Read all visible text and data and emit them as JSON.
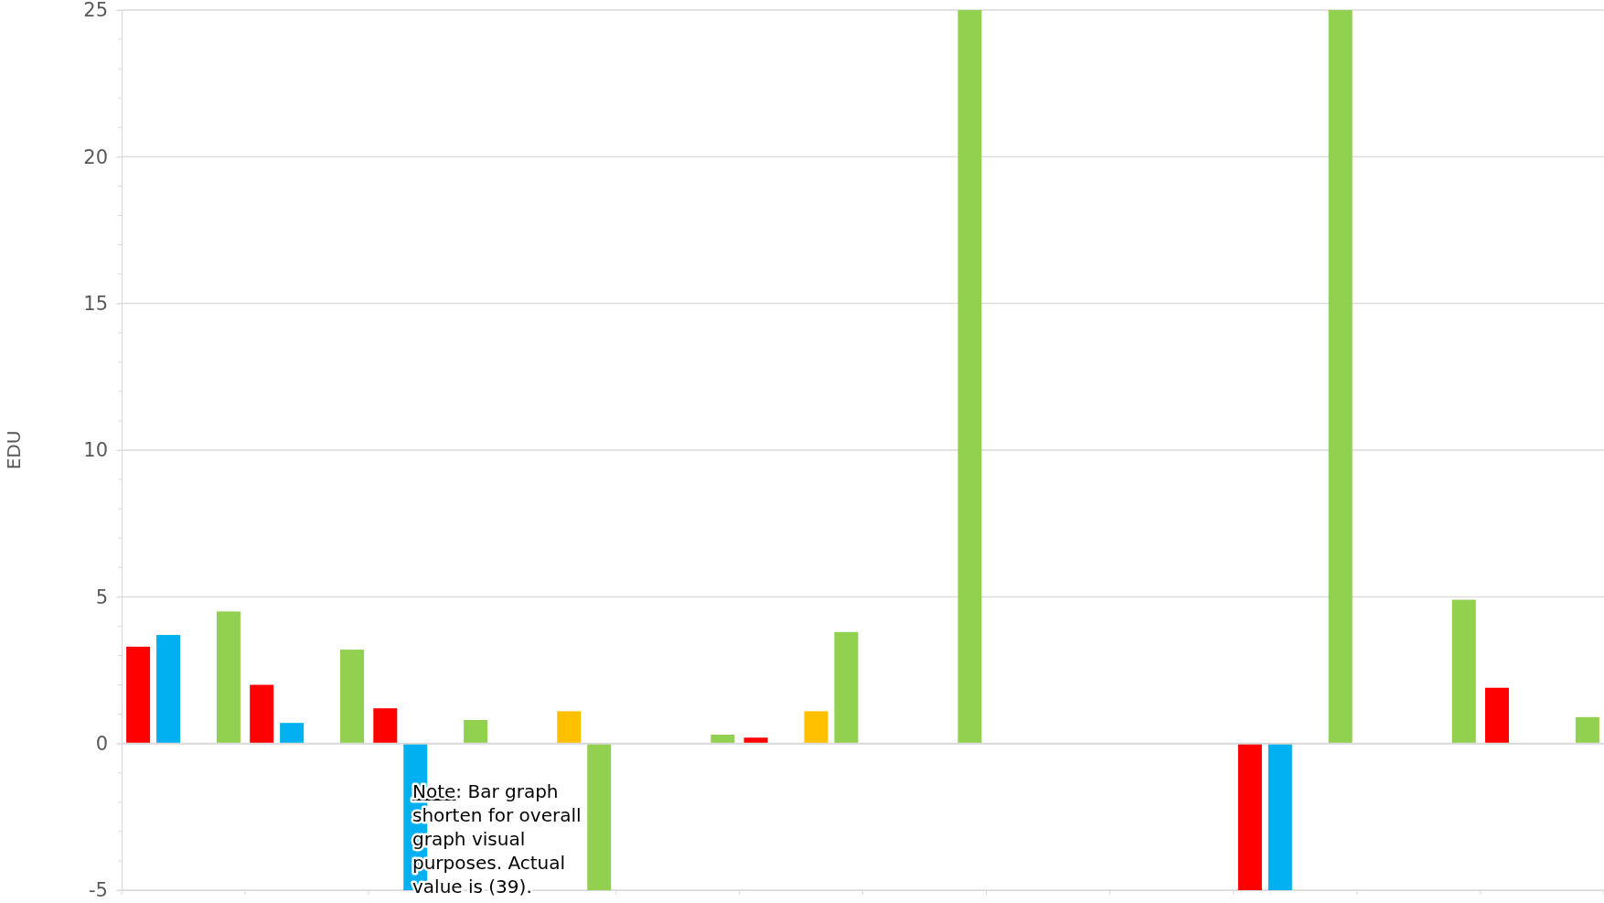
{
  "chart_data": {
    "type": "bar",
    "ylabel": "EDU",
    "categories": [
      null,
      null,
      null,
      null,
      null,
      null,
      null,
      null,
      null,
      null,
      null,
      null
    ],
    "series": [
      {
        "color": "#ff0000",
        "values": [
          3.3,
          2.0,
          1.2,
          null,
          null,
          0.2,
          null,
          null,
          null,
          -5,
          null,
          1.9
        ]
      },
      {
        "color": "#00b0f0",
        "values": [
          3.7,
          0.7,
          -5,
          null,
          null,
          null,
          null,
          null,
          null,
          -5,
          null,
          null
        ]
      },
      {
        "color": "#ffc000",
        "values": [
          null,
          null,
          null,
          1.1,
          null,
          1.1,
          null,
          null,
          null,
          null,
          null,
          null
        ]
      },
      {
        "color": "#92d050",
        "values": [
          4.5,
          3.2,
          0.8,
          -5,
          0.3,
          3.8,
          25,
          null,
          null,
          25,
          4.9,
          0.9
        ]
      }
    ],
    "ylim": [
      -5,
      25
    ],
    "yticks": [
      -5,
      0,
      5,
      10,
      15,
      20,
      25
    ],
    "grid": "y",
    "annotations": [
      "Note: Bar graph shorten for overall graph visual purposes. Actual value is (39)."
    ]
  }
}
